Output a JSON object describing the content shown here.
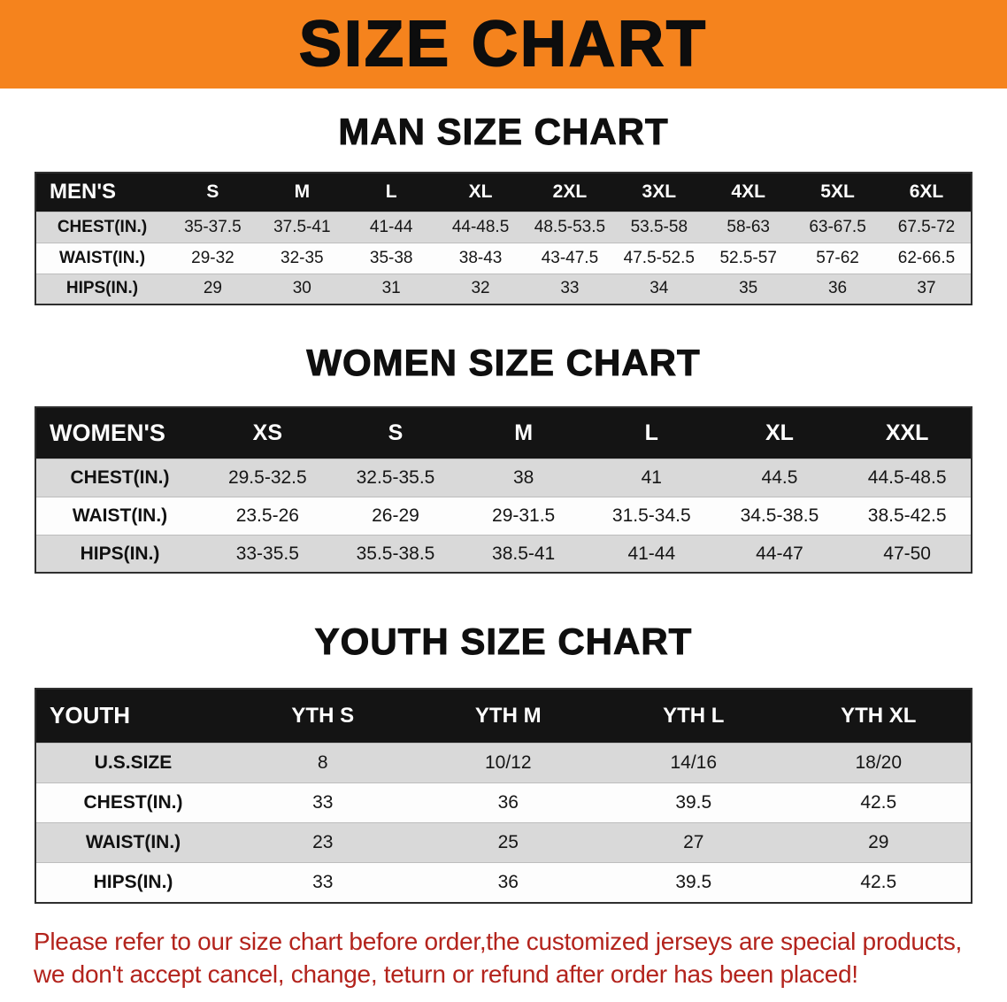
{
  "banner": {
    "title": "SIZE CHART"
  },
  "theme": {
    "banner_bg": "#f5831d",
    "table_header_bg": "#141414",
    "table_header_text": "#ffffff",
    "row_stripe_gray": "#d9d9d9",
    "row_stripe_white": "#fdfdfd",
    "disclaimer_color": "#b3231c"
  },
  "chart_data": [
    {
      "type": "table",
      "title": "MAN SIZE CHART",
      "header": [
        "MEN'S",
        "S",
        "M",
        "L",
        "XL",
        "2XL",
        "3XL",
        "4XL",
        "5XL",
        "6XL"
      ],
      "rows": [
        [
          "CHEST(IN.)",
          "35-37.5",
          "37.5-41",
          "41-44",
          "44-48.5",
          "48.5-53.5",
          "53.5-58",
          "58-63",
          "63-67.5",
          "67.5-72"
        ],
        [
          "WAIST(IN.)",
          "29-32",
          "32-35",
          "35-38",
          "38-43",
          "43-47.5",
          "47.5-52.5",
          "52.5-57",
          "57-62",
          "62-66.5"
        ],
        [
          "HIPS(IN.)",
          "29",
          "30",
          "31",
          "32",
          "33",
          "34",
          "35",
          "36",
          "37"
        ]
      ]
    },
    {
      "type": "table",
      "title": "WOMEN SIZE CHART",
      "header": [
        "WOMEN'S",
        "XS",
        "S",
        "M",
        "L",
        "XL",
        "XXL"
      ],
      "rows": [
        [
          "CHEST(IN.)",
          "29.5-32.5",
          "32.5-35.5",
          "38",
          "41",
          "44.5",
          "44.5-48.5"
        ],
        [
          "WAIST(IN.)",
          "23.5-26",
          "26-29",
          "29-31.5",
          "31.5-34.5",
          "34.5-38.5",
          "38.5-42.5"
        ],
        [
          "HIPS(IN.)",
          "33-35.5",
          "35.5-38.5",
          "38.5-41",
          "41-44",
          "44-47",
          "47-50"
        ]
      ]
    },
    {
      "type": "table",
      "title": "YOUTH SIZE CHART",
      "header": [
        "YOUTH",
        "YTH S",
        "YTH M",
        "YTH L",
        "YTH XL"
      ],
      "rows": [
        [
          "U.S.SIZE",
          "8",
          "10/12",
          "14/16",
          "18/20"
        ],
        [
          "CHEST(IN.)",
          "33",
          "36",
          "39.5",
          "42.5"
        ],
        [
          "WAIST(IN.)",
          "23",
          "25",
          "27",
          "29"
        ],
        [
          "HIPS(IN.)",
          "33",
          "36",
          "39.5",
          "42.5"
        ]
      ]
    }
  ],
  "disclaimer": {
    "line1": "Please refer to our size chart before order,the customized jerseys are special products,",
    "line2": "we don't accept cancel, change, teturn or refund after order has been placed!"
  }
}
